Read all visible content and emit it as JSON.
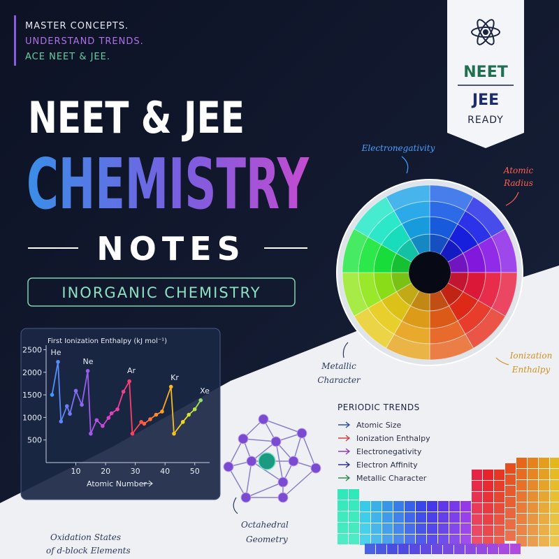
{
  "tagline": [
    "MASTER CONCEPTS.",
    "UNDERSTAND TRENDS.",
    "ACE NEET & JEE."
  ],
  "title": {
    "line1": "NEET & JEE",
    "line2": "CHEMISTRY",
    "line3": "NOTES"
  },
  "subtitle": "INORGANIC CHEMISTRY",
  "badge": {
    "top": "NEET",
    "middle": "JEE",
    "bottom": "READY"
  },
  "wheel_labels": {
    "electronegativity": "Electronegativity",
    "atomic_radius": [
      "Atomic",
      "Radius"
    ],
    "metallic_character": [
      "Metallic",
      "Character"
    ],
    "ionization_enthalpy": [
      "Ionization",
      "Enthalpy"
    ]
  },
  "ionization_chart": {
    "type": "line",
    "title": "First Ionization Enthalpy (kJ mol⁻¹)",
    "x_label": "Atomic Number",
    "x": [
      2,
      4,
      5,
      7,
      8,
      10,
      12,
      14,
      15,
      17,
      19,
      21,
      22,
      24,
      26,
      28,
      29,
      32,
      33,
      35,
      37,
      39,
      42,
      43,
      46,
      48,
      50,
      52
    ],
    "values": [
      1500,
      2230,
      910,
      1250,
      1080,
      1590,
      1280,
      2030,
      640,
      940,
      810,
      990,
      1090,
      1180,
      1570,
      1800,
      640,
      900,
      860,
      960,
      1060,
      1130,
      1680,
      640,
      900,
      1060,
      1180,
      1380
    ],
    "xlim": [
      0,
      55
    ],
    "ylim": [
      0,
      2600
    ],
    "xticks": [
      10,
      20,
      30,
      40,
      50
    ],
    "yticks": [
      500,
      1000,
      1500,
      2000,
      2500
    ],
    "peak_labels": [
      "He",
      "Ne",
      "Ar",
      "Kr",
      "Xe"
    ]
  },
  "periodic_trends": {
    "heading": "PERIODIC TRENDS",
    "items": [
      {
        "text": "Atomic Size",
        "color": "#2f4fb0"
      },
      {
        "text": "Ionization Enthalpy",
        "color": "#d04040"
      },
      {
        "text": "Electronegativity",
        "color": "#8a3cc0"
      },
      {
        "text": "Electron Affinity",
        "color": "#2a3290"
      },
      {
        "text": "Metallic Character",
        "color": "#2f8a4a"
      }
    ]
  },
  "octahedral": [
    "Octahedral",
    "Geometry"
  ],
  "oxidation": [
    "Oxidation States",
    "of d-block Elements"
  ]
}
